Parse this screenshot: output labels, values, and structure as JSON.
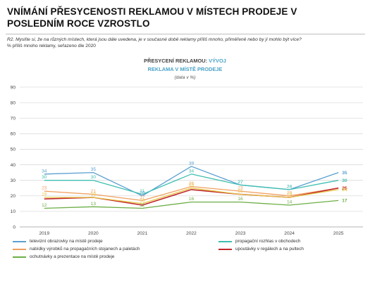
{
  "header": {
    "title": "VNÍMÁNÍ PŘESYCENOSTI REKLAMOU V MÍSTECH PRODEJE V POSLEDNÍM ROCE VZROSTLO",
    "question": "R2. Myslíte si, že na různých místech, která jsou dále uvedena, je v současné době reklamy příliš mnoho, přiměřeně nebo by jí mohlo být více?",
    "note": "% příliš mnoho reklamy, seřazeno dle 2020"
  },
  "chart_data": {
    "type": "line",
    "title_part1": "PŘESYCENÍ REKLAMOU: ",
    "title_part2": "VÝVOJ",
    "title_line2": "REKLAMA V MÍSTĚ PRODEJE",
    "subtitle": "(data v %)",
    "x": [
      "2019",
      "2020",
      "2021",
      "2022",
      "2023",
      "2024",
      "2025"
    ],
    "ylim": [
      0,
      90
    ],
    "yticks": [
      "0",
      "10",
      "20",
      "30",
      "40",
      "50",
      "60",
      "70",
      "80",
      "90"
    ],
    "grid": true,
    "legend_position": "bottom",
    "series": [
      {
        "name": "televizní obrazovky na místě prodeje",
        "color": "#5a9fd0",
        "values": [
          34,
          35,
          20,
          39,
          27,
          24,
          35
        ],
        "labels": [
          "34",
          "35",
          "20",
          "39",
          "27",
          "24",
          "35"
        ]
      },
      {
        "name": "propagační rozhlas v obchodech",
        "color": "#3fbfb0",
        "values": [
          30,
          30,
          21,
          34,
          27,
          24,
          30
        ],
        "labels": [
          "30",
          "30",
          "21",
          "34",
          "27",
          "24",
          "30"
        ]
      },
      {
        "name": "nabídky výrobků na propagačních stojanech a paletách",
        "color": "#f0a060",
        "values": [
          23,
          21,
          17,
          26,
          23,
          20,
          25
        ],
        "labels": [
          "23",
          "21",
          "17",
          "26",
          "23",
          "20",
          "25"
        ]
      },
      {
        "name": "upoutávky v regálech a na pultech",
        "color": "#c0282d",
        "values": [
          18,
          19,
          14,
          24,
          21,
          19,
          25
        ],
        "labels": [
          "",
          "",
          "",
          "",
          "",
          "",
          "25"
        ]
      },
      {
        "name": "ochutnávky a prezentace na místě prodeje",
        "color": "#e8c94a",
        "values": [
          19,
          19,
          15,
          25,
          21,
          19,
          24
        ],
        "labels": [
          "19",
          "19",
          "15",
          "25",
          "21",
          "19",
          "24"
        ]
      },
      {
        "name": "",
        "color": "#6cae45",
        "values": [
          12,
          13,
          12,
          16,
          16,
          14,
          17
        ],
        "labels": [
          "12",
          "13",
          "12",
          "16",
          "16",
          "14",
          "17"
        ]
      }
    ]
  }
}
